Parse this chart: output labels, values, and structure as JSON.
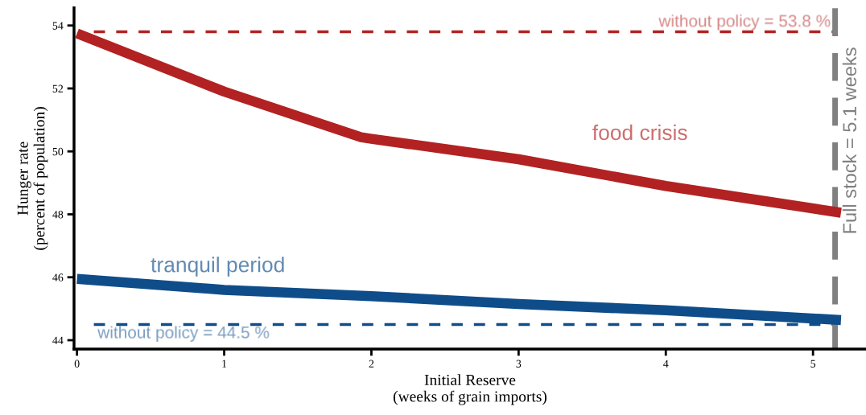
{
  "chart_data": {
    "type": "line",
    "xlabel": "Initial Reserve\n(weeks of grain imports)",
    "ylabel": "Hunger rate\n(percent of population)",
    "series": [
      {
        "name": "food crisis",
        "color": "#b22222",
        "x": [
          0,
          1,
          1.93,
          2,
          3,
          4,
          5.19
        ],
        "values": [
          53.75,
          51.9,
          50.45,
          50.4,
          49.75,
          48.9,
          48.05
        ]
      },
      {
        "name": "tranquil period",
        "color": "#0f4d8a",
        "x": [
          0,
          1,
          2,
          3,
          4,
          5.19
        ],
        "values": [
          45.95,
          45.6,
          45.4,
          45.15,
          44.95,
          44.64
        ]
      }
    ],
    "xlim": [
      -0.02,
      5.36
    ],
    "ylim": [
      43.72,
      54.56
    ],
    "xticks": [
      0,
      1,
      2,
      3,
      4,
      5
    ],
    "yticks": [
      44,
      46,
      48,
      50,
      52,
      54
    ],
    "ref_lines": [
      {
        "axis": "y",
        "value": 53.8,
        "label": "without policy = 53.8 %",
        "color": "#b22222",
        "line_style": "dashed"
      },
      {
        "axis": "y",
        "value": 44.5,
        "label": "without policy = 44.5 %",
        "color": "#0f4d8a",
        "line_style": "dashed"
      },
      {
        "axis": "x",
        "value": 5.15,
        "label": "Full stock = 5.1 weeks",
        "color": "#808080",
        "line_style": "dashed"
      }
    ],
    "grid": false,
    "legend": false,
    "marker": "none",
    "line_style": "solid"
  }
}
